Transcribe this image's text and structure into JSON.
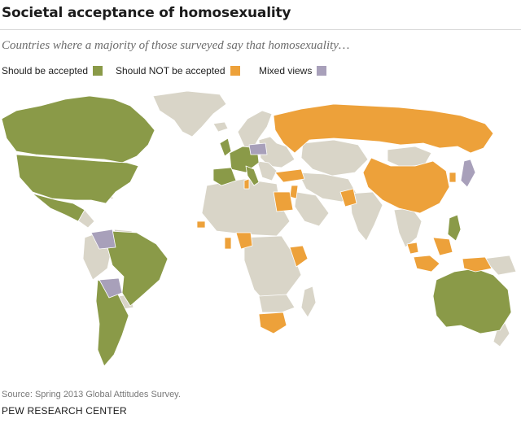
{
  "title": "Societal acceptance of homosexuality",
  "subtitle": "Countries where a majority of those surveyed say that homosexuality…",
  "legend": [
    {
      "label": "Should be accepted",
      "color": "#8a9a48"
    },
    {
      "label": "Should NOT be accepted",
      "color": "#eda13a"
    },
    {
      "label": "Mixed views",
      "color": "#a8a0ba"
    }
  ],
  "colors": {
    "accepted": "#8a9a48",
    "not_accepted": "#eda13a",
    "mixed": "#a8a0ba",
    "no_data": "#d9d5c8"
  },
  "source": "Source: Spring 2013 Global Attitudes Survey.",
  "org": "PEW RESEARCH CENTER"
}
